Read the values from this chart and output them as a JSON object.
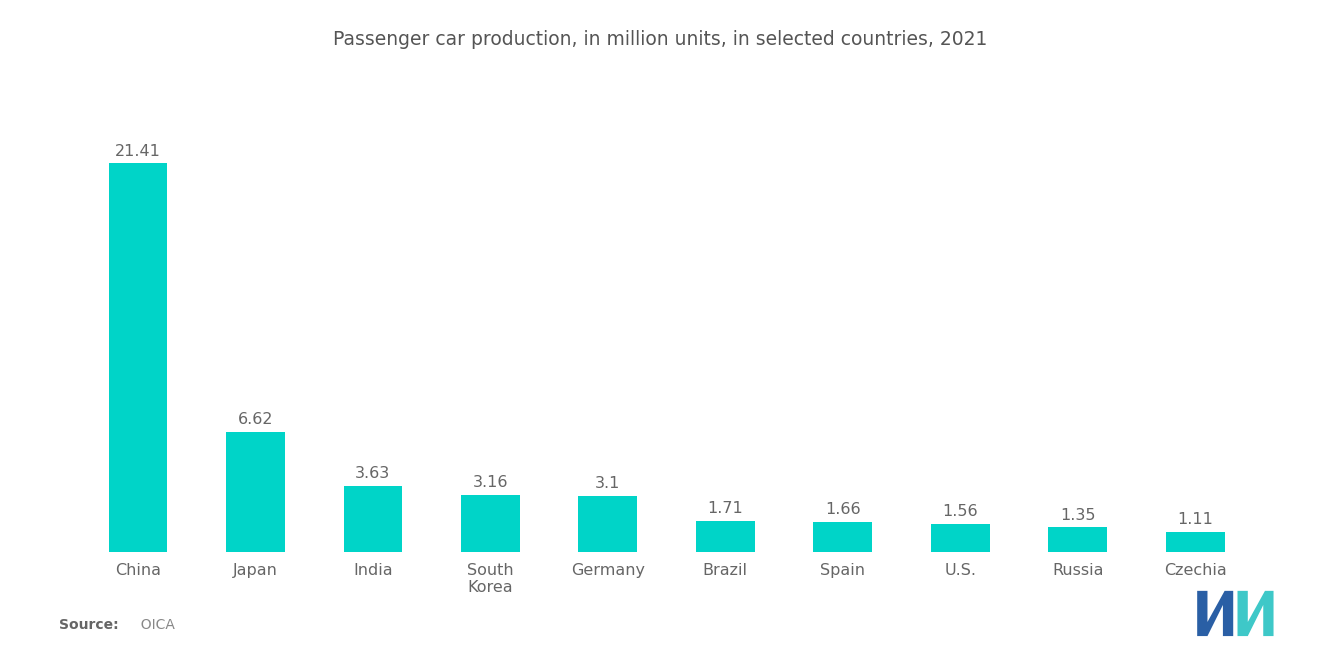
{
  "title": "Passenger car production, in million units, in selected countries, 2021",
  "categories": [
    "China",
    "Japan",
    "India",
    "South\nKorea",
    "Germany",
    "Brazil",
    "Spain",
    "U.S.",
    "Russia",
    "Czechia"
  ],
  "values": [
    21.41,
    6.62,
    3.63,
    3.16,
    3.1,
    1.71,
    1.66,
    1.56,
    1.35,
    1.11
  ],
  "bar_color": "#00D4C8",
  "background_color": "#FFFFFF",
  "source_label_bold": "Source:",
  "source_label_normal": "  OICA",
  "title_fontsize": 13.5,
  "label_fontsize": 11.5,
  "value_fontsize": 11.5,
  "source_fontsize": 10,
  "ylim": [
    0,
    26
  ]
}
